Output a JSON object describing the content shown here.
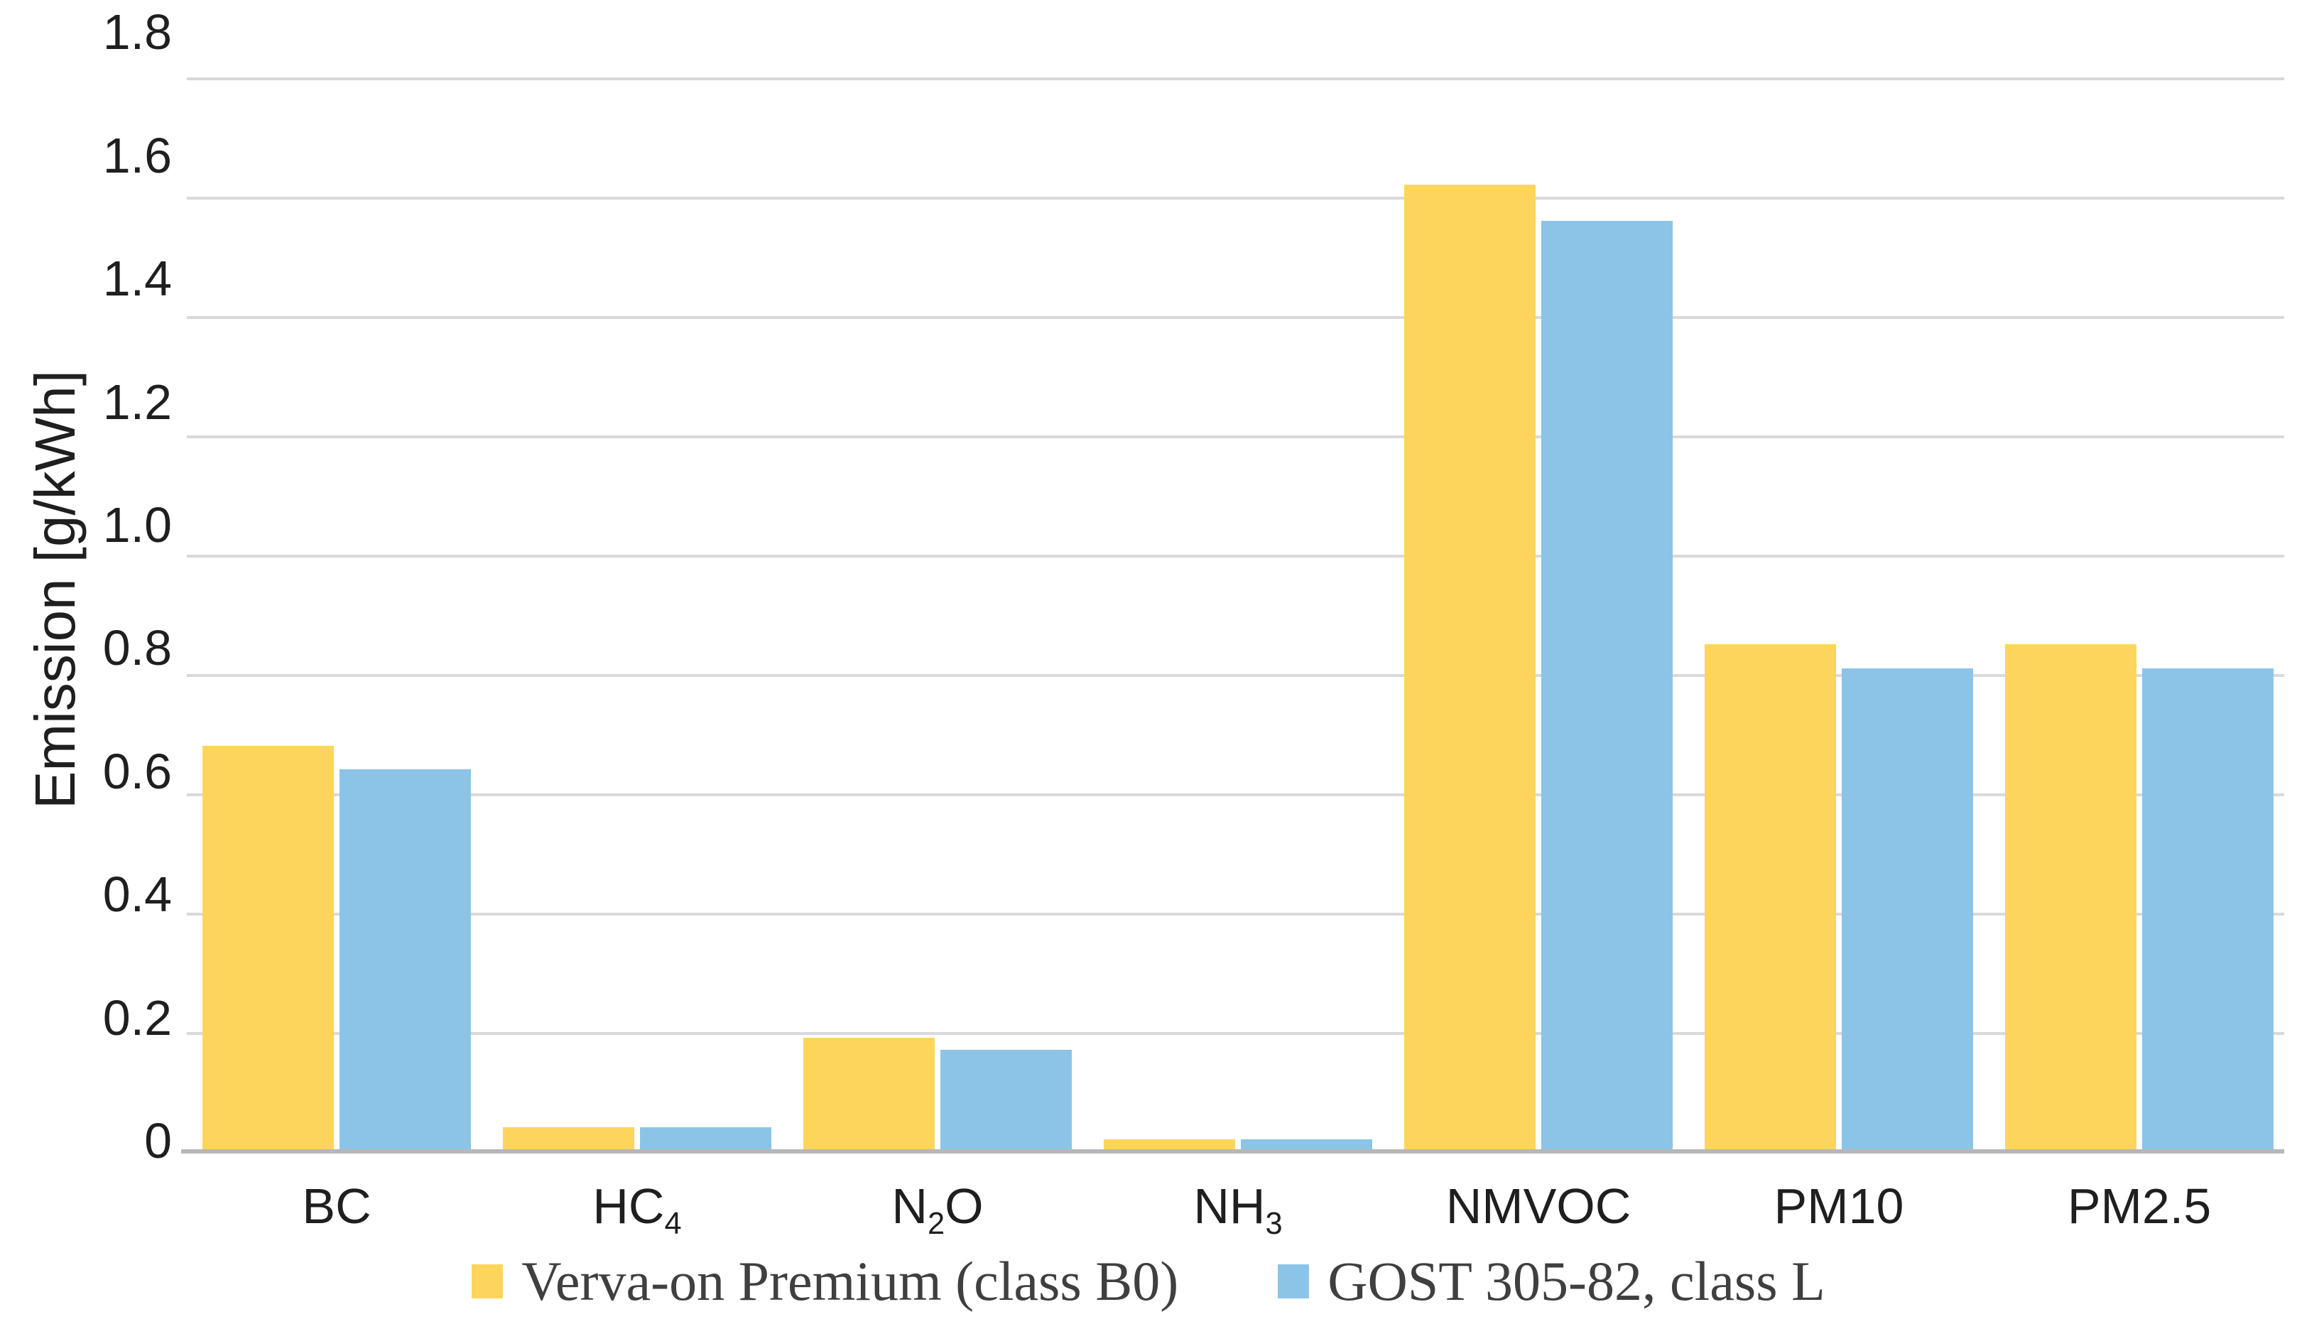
{
  "chart_data": {
    "type": "bar",
    "title": "",
    "xlabel": "",
    "ylabel": "Emission [g/kWh]",
    "ylim": [
      0,
      1.8
    ],
    "y_tick_step": 0.2,
    "y_ticks": [
      "1.8",
      "1.6",
      "1.4",
      "1.2",
      "1.0",
      "0.8",
      "0.6",
      "0.4",
      "0.2",
      "0"
    ],
    "grid": "horizontal gridlines on",
    "legend_position": "bottom center",
    "categories": [
      "BC",
      "HC₄",
      "N₂O",
      "NH₃",
      "NMVOC",
      "PM10",
      "PM2.5"
    ],
    "series": [
      {
        "name": "Verva-on Premium (class B0)",
        "color": "#FDD55C",
        "values": [
          0.68,
          0.04,
          0.19,
          0.02,
          1.62,
          0.85,
          0.85
        ]
      },
      {
        "name": "GOST 305-82, class L",
        "color": "#8CC4E8",
        "values": [
          0.64,
          0.04,
          0.17,
          0.02,
          1.56,
          0.81,
          0.81
        ]
      }
    ],
    "units": "g/kWh"
  },
  "colors": {
    "gridline": "#D9D9D9",
    "axis_line": "#B7B7B7",
    "tick_text": "#1F1F1F",
    "legend_text": "#3F3F3F",
    "background": "#FFFFFF"
  }
}
